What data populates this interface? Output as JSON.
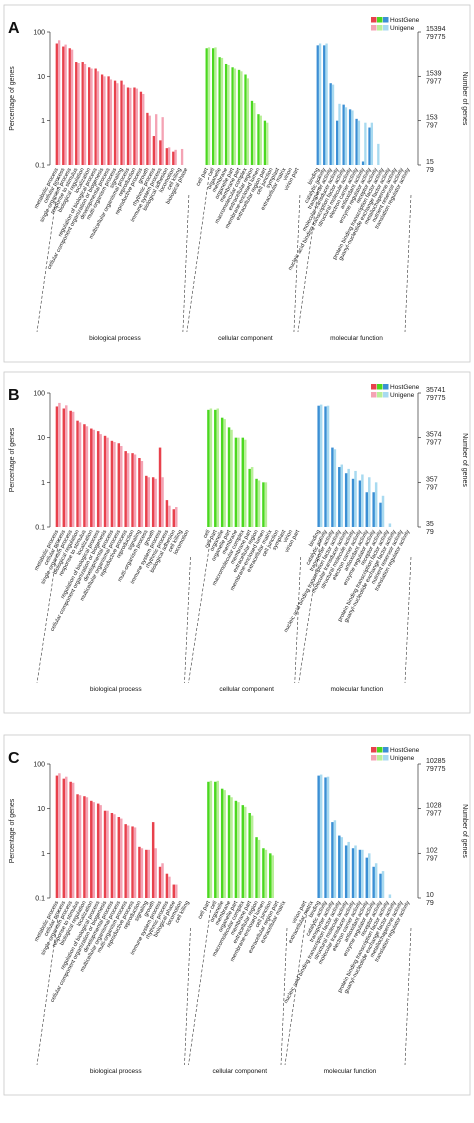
{
  "legend": {
    "host_label": "HostGene",
    "unigene_label": "Unigene"
  },
  "axes": {
    "left_title": "Percentage of genes",
    "right_title": "Number of genes",
    "left_ticks": [
      "0.1",
      "1",
      "10",
      "100"
    ]
  },
  "groups": [
    "biological process",
    "cellular component",
    "molecular function"
  ],
  "colors": {
    "bp_host": "#e8414c",
    "bp_uni": "#f4a3b4",
    "cc_host": "#4bd820",
    "cc_uni": "#b8ef98",
    "mf_host": "#3b8fd4",
    "mf_uni": "#a8daf0"
  },
  "chart_data": [
    {
      "type": "bar",
      "letter": "A",
      "ylim": [
        0.1,
        100
      ],
      "scale": "log",
      "right_ticks": [
        [
          "15394",
          "79775"
        ],
        [
          "1539",
          "7977"
        ],
        [
          "153",
          "797"
        ],
        [
          "15",
          "79"
        ]
      ],
      "groups": [
        {
          "name": "biological process",
          "categories": [
            "metabolic process",
            "cellular process",
            "single-organism process",
            "response to stimulus",
            "biological regulation",
            "localization",
            "regulation of biological process",
            "cellular component organization or biogenesis",
            "developmental process",
            "multi-organism process",
            "signaling",
            "multicellular organismal process",
            "reproduction",
            "reproductive process",
            "growth",
            "rhythmic process",
            "immune system process",
            "biological adhesion",
            "locomotion",
            "cell killing",
            "biological phase"
          ],
          "series": [
            {
              "name": "HostGene",
              "values": [
                55,
                47,
                43,
                21,
                21,
                16,
                15,
                11,
                10,
                8,
                8,
                5.6,
                5.6,
                4.5,
                1.5,
                0.45,
                0.36,
                0.24,
                0.2,
                0.1,
                0.1
              ]
            },
            {
              "name": "Unigene",
              "values": [
                65,
                52,
                40,
                20,
                19,
                15,
                13,
                10,
                8.5,
                7,
                6.5,
                5.5,
                5.3,
                4.0,
                1.3,
                1.4,
                1.2,
                0.25,
                0.22,
                0.23,
                0.1
              ]
            }
          ]
        },
        {
          "name": "cellular component",
          "categories": [
            "cell part",
            "cell",
            "organelle",
            "membrane",
            "organelle part",
            "membrane part",
            "macromolecular complex",
            "extracellular region",
            "membrane-enclosed lumen",
            "extracellular region part",
            "cell junction",
            "symplast",
            "extracellular matrix",
            "virion",
            "virion part"
          ],
          "series": [
            {
              "name": "HostGene",
              "values": [
                43,
                43,
                27,
                19,
                16,
                14,
                11,
                2.8,
                1.4,
                1.0,
                0.1,
                0.1,
                0.1,
                0.1,
                0.1
              ]
            },
            {
              "name": "Unigene",
              "values": [
                45,
                45,
                26,
                18,
                15,
                13,
                9,
                2.5,
                1.3,
                0.9,
                0.1,
                0.1,
                0.1,
                0.1,
                0.1
              ]
            }
          ]
        },
        {
          "name": "molecular function",
          "categories": [
            "binding",
            "catalytic activity",
            "transporter activity",
            "molecular transducer activity",
            "nucleic acid binding transcription factor activity",
            "structural molecule activity",
            "electron carrier activity",
            "antioxidant activity",
            "enzyme regulator activity",
            "receptor activity",
            "protein binding transcription factor activity",
            "guanyl-nucleotide exchange factor activity",
            "metallochaperone activity",
            "nutrient reservoir activity",
            "translation regulator activity"
          ],
          "series": [
            {
              "name": "HostGene",
              "values": [
                50,
                50,
                7,
                1.0,
                2.3,
                1.8,
                1.1,
                0.12,
                0.7,
                0.1,
                0.1,
                0.1,
                0.1,
                0.1,
                0.1
              ]
            },
            {
              "name": "Unigene",
              "values": [
                55,
                55,
                6.5,
                2.4,
                2.0,
                1.7,
                1.0,
                0.9,
                0.9,
                0.3,
                0.1,
                0.1,
                0.1,
                0.1,
                0.1
              ]
            }
          ]
        }
      ]
    },
    {
      "type": "bar",
      "letter": "B",
      "ylim": [
        0.1,
        100
      ],
      "scale": "log",
      "right_ticks": [
        [
          "35741",
          "79775"
        ],
        [
          "3574",
          "7977"
        ],
        [
          "357",
          "797"
        ],
        [
          "35",
          "79"
        ]
      ],
      "groups": [
        {
          "name": "biological process",
          "categories": [
            "metabolic process",
            "cellular process",
            "single-organism process",
            "biological regulation",
            "response to stimulus",
            "localization",
            "regulation of biological process",
            "cellular component organization or biogenesis",
            "developmental process",
            "multicellular organismal process",
            "reproductive process",
            "reproduction",
            "signaling",
            "multi-organism process",
            "growth",
            "immune system process",
            "rhythmic process",
            "biological adhesion",
            "cell killing",
            "locomotion"
          ],
          "series": [
            {
              "name": "HostGene",
              "values": [
                50,
                45,
                40,
                24,
                20,
                16,
                14,
                11,
                8.5,
                7.5,
                5,
                4.5,
                3.5,
                1.4,
                1.3,
                6,
                0.4,
                0.25,
                0.1,
                0.1
              ]
            },
            {
              "name": "Unigene",
              "values": [
                60,
                53,
                38,
                22,
                18,
                15,
                12,
                10,
                8,
                6.5,
                4.5,
                4.2,
                3.0,
                1.3,
                1.2,
                1.3,
                0.3,
                0.28,
                0.1,
                0.1
              ]
            }
          ]
        },
        {
          "name": "cellular component",
          "categories": [
            "cell",
            "cell part",
            "organelle",
            "organelle part",
            "membrane",
            "macromolecular complex",
            "membrane part",
            "extracellular region",
            "membrane-enclosed lumen",
            "extracellular matrix",
            "cell junction",
            "symplast",
            "virion",
            "virion part"
          ],
          "series": [
            {
              "name": "HostGene",
              "values": [
                42,
                42,
                28,
                17,
                10,
                10,
                2.0,
                1.2,
                1.0,
                0.1,
                0.1,
                0.1,
                0.1,
                0.1
              ]
            },
            {
              "name": "Unigene",
              "values": [
                45,
                45,
                26,
                15,
                10,
                9,
                2.2,
                1.1,
                1.0,
                0.1,
                0.1,
                0.1,
                0.1,
                0.1
              ]
            }
          ]
        },
        {
          "name": "molecular function",
          "categories": [
            "binding",
            "catalytic activity",
            "transporter activity",
            "nucleic acid binding transcription factor activity",
            "molecular transducer activity",
            "structural molecule activity",
            "electron carrier activity",
            "antioxidant activity",
            "enzyme regulator activity",
            "receptor activity",
            "protein binding transcription factor activity",
            "guanyl-nucleotide exchange factor activity",
            "nutrient reservoir activity",
            "translation regulator activity"
          ],
          "series": [
            {
              "name": "HostGene",
              "values": [
                52,
                50,
                6,
                2.2,
                1.6,
                1.2,
                1.1,
                0.6,
                0.6,
                0.35,
                0.1,
                0.1,
                0.1,
                0.1
              ]
            },
            {
              "name": "Unigene",
              "values": [
                55,
                52,
                5.5,
                2.5,
                2.0,
                1.8,
                1.5,
                1.3,
                1.0,
                0.5,
                0.12,
                0.1,
                0.1,
                0.1
              ]
            }
          ]
        }
      ]
    },
    {
      "type": "bar",
      "letter": "C",
      "ylim": [
        0.1,
        100
      ],
      "scale": "log",
      "right_ticks": [
        [
          "10285",
          "79775"
        ],
        [
          "1028",
          "7977"
        ],
        [
          "102",
          "797"
        ],
        [
          "10",
          "79"
        ]
      ],
      "groups": [
        {
          "name": "biological process",
          "categories": [
            "metabolic process",
            "cellular process",
            "single-organism process",
            "response to stimulus",
            "biological regulation",
            "localization",
            "regulation of biological process",
            "cellular component organization or biogenesis",
            "developmental process",
            "multicellular organismal process",
            "multi-organism process",
            "reproductive process",
            "reproduction",
            "signaling",
            "growth",
            "immune system process",
            "rhythmic process",
            "biological phase",
            "locomotion",
            "cell killing"
          ],
          "series": [
            {
              "name": "HostGene",
              "values": [
                55,
                47,
                40,
                21,
                19,
                15,
                13,
                9,
                8,
                6.5,
                4.5,
                4.0,
                1.4,
                1.2,
                5,
                0.5,
                0.35,
                0.2,
                0.1,
                0.1
              ]
            },
            {
              "name": "Unigene",
              "values": [
                62,
                52,
                38,
                20,
                18,
                14,
                12,
                9,
                7.5,
                6,
                4.2,
                3.8,
                1.3,
                1.2,
                1.3,
                0.6,
                0.3,
                0.2,
                0.1,
                0.1
              ]
            }
          ]
        },
        {
          "name": "cellular component",
          "categories": [
            "cell part",
            "cell",
            "organelle",
            "membrane",
            "organelle part",
            "macromolecular complex",
            "membrane part",
            "extracellular region",
            "membrane-enclosed lumen",
            "cell junction",
            "extracellular region part",
            "extracellular matrix"
          ],
          "series": [
            {
              "name": "HostGene",
              "values": [
                40,
                40,
                28,
                20,
                15,
                12,
                8,
                2.3,
                1.3,
                1.0,
                0.1,
                0.1
              ]
            },
            {
              "name": "Unigene",
              "values": [
                42,
                42,
                26,
                18,
                14,
                11,
                7,
                2.0,
                1.2,
                0.9,
                0.1,
                0.1
              ]
            }
          ]
        },
        {
          "name": "molecular function",
          "categories": [
            "virion part",
            "extracellular matrix",
            "binding",
            "catalytic activity",
            "transporter activity",
            "nucleic acid binding transcription factor activity",
            "structural molecule activity",
            "molecular transducer activity",
            "electron carrier activity",
            "antioxidant activity",
            "enzyme regulator activity",
            "receptor activity",
            "protein binding transcription factor activity",
            "guanyl-nucleotide exchange factor activity",
            "metallochaperone activity",
            "translation regulator activity"
          ],
          "series": [
            {
              "name": "HostGene",
              "values": [
                0.1,
                0.1,
                55,
                50,
                5,
                2.5,
                1.5,
                1.3,
                1.2,
                0.8,
                0.5,
                0.35,
                0.1,
                0.1,
                0.1,
                0.1
              ]
            },
            {
              "name": "Unigene",
              "values": [
                0.1,
                0.1,
                58,
                52,
                5.5,
                2.3,
                1.8,
                1.5,
                1.2,
                1.0,
                0.6,
                0.4,
                0.12,
                0.1,
                0.1,
                0.1
              ]
            }
          ]
        }
      ]
    }
  ]
}
